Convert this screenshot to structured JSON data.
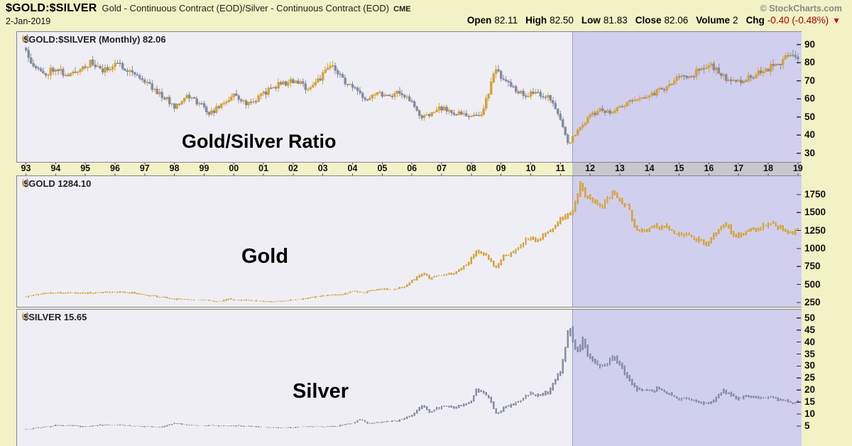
{
  "header": {
    "symbol": "$GOLD:$SILVER",
    "description": "Gold - Continuous Contract (EOD)/Silver - Continuous Contract (EOD)",
    "exchange": "CME",
    "copyright": "© StockCharts.com",
    "date": "2-Jan-2019",
    "down_triangle": "▼",
    "quote_fields": [
      {
        "label": "Open",
        "value": "82.11"
      },
      {
        "label": "High",
        "value": "82.50"
      },
      {
        "label": "Low",
        "value": "81.83"
      },
      {
        "label": "Close",
        "value": "82.06"
      },
      {
        "label": "Volume",
        "value": "2"
      },
      {
        "label": "Chg",
        "value": "-0.40 (-0.48%)",
        "negative": true
      }
    ]
  },
  "colors": {
    "background": "#f2f2c6",
    "plot_background": "#eeeef4",
    "shade_region": "#d0d0ee",
    "axis_shade": "#c7c7cd",
    "gold": "#d7a13b",
    "blue_gray": "#868ca4",
    "panel_border": "#84849c",
    "negative_red": "#aa0000"
  },
  "xaxis": {
    "x_range": [
      1992.7,
      2019.1
    ],
    "years": [
      "93",
      "94",
      "95",
      "96",
      "97",
      "98",
      "99",
      "00",
      "01",
      "02",
      "03",
      "04",
      "05",
      "06",
      "07",
      "08",
      "09",
      "10",
      "11",
      "12",
      "13",
      "14",
      "15",
      "16",
      "17",
      "18",
      "19"
    ]
  },
  "shade": {
    "start_year": 2011.4
  },
  "chart_data": [
    {
      "type": "bar",
      "style": "candle",
      "title": "$GOLD:$SILVER (Monthly) 82.06",
      "annotation": "Gold/Silver Ratio",
      "last_value": 82.06,
      "ylim": [
        25.2,
        97
      ],
      "yticks": [
        90,
        80,
        70,
        60,
        50,
        40,
        30
      ],
      "up_color": "#d7a13b",
      "down_color": "#868ca4",
      "volatility": 0.05,
      "seed": 11,
      "anchors": [
        [
          1993.0,
          88
        ],
        [
          1993.2,
          80
        ],
        [
          1993.6,
          73
        ],
        [
          1994.0,
          78
        ],
        [
          1994.4,
          72
        ],
        [
          1994.8,
          77
        ],
        [
          1995.2,
          80
        ],
        [
          1995.6,
          75
        ],
        [
          1996.0,
          80
        ],
        [
          1996.5,
          76
        ],
        [
          1997.0,
          70
        ],
        [
          1997.5,
          63
        ],
        [
          1998.0,
          56
        ],
        [
          1998.4,
          62
        ],
        [
          1998.8,
          58
        ],
        [
          1999.2,
          52
        ],
        [
          1999.6,
          57
        ],
        [
          2000.0,
          62
        ],
        [
          2000.5,
          57
        ],
        [
          2001.0,
          63
        ],
        [
          2001.5,
          68
        ],
        [
          2002.0,
          70
        ],
        [
          2002.5,
          66
        ],
        [
          2003.0,
          73
        ],
        [
          2003.3,
          79
        ],
        [
          2003.7,
          70
        ],
        [
          2004.0,
          66
        ],
        [
          2004.4,
          60
        ],
        [
          2004.8,
          64
        ],
        [
          2005.2,
          62
        ],
        [
          2005.6,
          64
        ],
        [
          2006.0,
          58
        ],
        [
          2006.3,
          49
        ],
        [
          2006.7,
          53
        ],
        [
          2007.0,
          55
        ],
        [
          2007.5,
          52
        ],
        [
          2008.0,
          50
        ],
        [
          2008.4,
          53
        ],
        [
          2008.8,
          77
        ],
        [
          2009.0,
          71
        ],
        [
          2009.4,
          66
        ],
        [
          2009.8,
          62
        ],
        [
          2010.2,
          64
        ],
        [
          2010.6,
          61
        ],
        [
          2011.0,
          49
        ],
        [
          2011.3,
          34
        ],
        [
          2011.45,
          40
        ],
        [
          2011.7,
          44
        ],
        [
          2012.0,
          51
        ],
        [
          2012.4,
          54
        ],
        [
          2012.8,
          53
        ],
        [
          2013.2,
          57
        ],
        [
          2013.6,
          60
        ],
        [
          2014.0,
          62
        ],
        [
          2014.5,
          66
        ],
        [
          2015.0,
          72
        ],
        [
          2015.5,
          74
        ],
        [
          2016.0,
          79
        ],
        [
          2016.4,
          74
        ],
        [
          2016.8,
          69
        ],
        [
          2017.2,
          71
        ],
        [
          2017.6,
          74
        ],
        [
          2018.0,
          77
        ],
        [
          2018.4,
          80
        ],
        [
          2018.6,
          84
        ],
        [
          2018.9,
          82
        ],
        [
          2019.0,
          82.06
        ]
      ]
    },
    {
      "type": "bar",
      "style": "bar",
      "title": "$GOLD 1284.10",
      "annotation": "Gold",
      "last_value": 1284.1,
      "ylim": [
        190,
        2006
      ],
      "yticks": [
        1750,
        1500,
        1250,
        1000,
        750,
        500,
        250
      ],
      "up_color": "#d7a13b",
      "down_color": "#d7a13b",
      "volatility": 0.038,
      "seed": 23,
      "anchors": [
        [
          1993.0,
          330
        ],
        [
          1993.5,
          375
        ],
        [
          1994.0,
          385
        ],
        [
          1994.5,
          385
        ],
        [
          1995.0,
          378
        ],
        [
          1995.5,
          385
        ],
        [
          1996.0,
          400
        ],
        [
          1996.5,
          385
        ],
        [
          1997.0,
          355
        ],
        [
          1997.5,
          325
        ],
        [
          1998.0,
          295
        ],
        [
          1998.5,
          290
        ],
        [
          1999.0,
          287
        ],
        [
          1999.55,
          256
        ],
        [
          1999.8,
          300
        ],
        [
          2000.0,
          285
        ],
        [
          2000.5,
          280
        ],
        [
          2001.0,
          265
        ],
        [
          2001.3,
          258
        ],
        [
          2001.8,
          278
        ],
        [
          2002.0,
          282
        ],
        [
          2002.5,
          315
        ],
        [
          2003.0,
          345
        ],
        [
          2003.5,
          355
        ],
        [
          2004.0,
          405
        ],
        [
          2004.4,
          390
        ],
        [
          2004.9,
          440
        ],
        [
          2005.3,
          428
        ],
        [
          2005.8,
          470
        ],
        [
          2006.0,
          550
        ],
        [
          2006.4,
          650
        ],
        [
          2006.6,
          585
        ],
        [
          2007.0,
          640
        ],
        [
          2007.5,
          665
        ],
        [
          2007.9,
          800
        ],
        [
          2008.2,
          975
        ],
        [
          2008.5,
          900
        ],
        [
          2008.85,
          725
        ],
        [
          2009.1,
          900
        ],
        [
          2009.4,
          930
        ],
        [
          2009.9,
          1150
        ],
        [
          2010.2,
          1110
        ],
        [
          2010.6,
          1230
        ],
        [
          2011.0,
          1390
        ],
        [
          2011.4,
          1520
        ],
        [
          2011.65,
          1880
        ],
        [
          2011.85,
          1720
        ],
        [
          2012.1,
          1680
        ],
        [
          2012.4,
          1590
        ],
        [
          2012.75,
          1770
        ],
        [
          2013.0,
          1660
        ],
        [
          2013.3,
          1560
        ],
        [
          2013.55,
          1230
        ],
        [
          2013.9,
          1250
        ],
        [
          2014.2,
          1320
        ],
        [
          2014.6,
          1290
        ],
        [
          2014.9,
          1180
        ],
        [
          2015.2,
          1200
        ],
        [
          2015.6,
          1120
        ],
        [
          2015.95,
          1065
        ],
        [
          2016.3,
          1240
        ],
        [
          2016.55,
          1360
        ],
        [
          2016.9,
          1150
        ],
        [
          2017.2,
          1230
        ],
        [
          2017.6,
          1270
        ],
        [
          2018.0,
          1330
        ],
        [
          2018.3,
          1320
        ],
        [
          2018.7,
          1185
        ],
        [
          2019.0,
          1284.1
        ]
      ]
    },
    {
      "type": "bar",
      "style": "bar",
      "title": "$SILVER 15.65",
      "annotation": "Silver",
      "last_value": 15.65,
      "ylim": [
        -3,
        53.5
      ],
      "yticks": [
        50,
        45,
        40,
        35,
        30,
        25,
        20,
        15,
        10,
        5
      ],
      "up_color": "#868ca4",
      "down_color": "#868ca4",
      "volatility": 0.055,
      "seed": 41,
      "anchors": [
        [
          1993.0,
          3.7
        ],
        [
          1993.5,
          4.4
        ],
        [
          1994.0,
          5.3
        ],
        [
          1994.5,
          5.3
        ],
        [
          1995.0,
          4.7
        ],
        [
          1995.5,
          5.4
        ],
        [
          1996.0,
          5.5
        ],
        [
          1996.5,
          5.1
        ],
        [
          1997.0,
          4.8
        ],
        [
          1997.5,
          4.4
        ],
        [
          1998.0,
          6.2
        ],
        [
          1998.4,
          5.4
        ],
        [
          1999.0,
          5.2
        ],
        [
          1999.5,
          5.2
        ],
        [
          2000.0,
          5.1
        ],
        [
          2000.5,
          5.0
        ],
        [
          2001.0,
          4.5
        ],
        [
          2001.6,
          4.3
        ],
        [
          2002.0,
          4.4
        ],
        [
          2002.5,
          4.8
        ],
        [
          2003.0,
          4.7
        ],
        [
          2003.5,
          5.0
        ],
        [
          2004.0,
          6.3
        ],
        [
          2004.25,
          7.9
        ],
        [
          2004.5,
          6.0
        ],
        [
          2005.0,
          6.8
        ],
        [
          2005.5,
          7.2
        ],
        [
          2006.0,
          9.4
        ],
        [
          2006.35,
          13.9
        ],
        [
          2006.6,
          10.8
        ],
        [
          2007.0,
          13.2
        ],
        [
          2007.5,
          13.0
        ],
        [
          2007.95,
          14.7
        ],
        [
          2008.2,
          20.2
        ],
        [
          2008.6,
          17.0
        ],
        [
          2008.85,
          9.6
        ],
        [
          2009.1,
          12.8
        ],
        [
          2009.5,
          14.5
        ],
        [
          2009.95,
          18.5
        ],
        [
          2010.2,
          17.5
        ],
        [
          2010.6,
          19.0
        ],
        [
          2011.0,
          28.5
        ],
        [
          2011.3,
          46.5
        ],
        [
          2011.55,
          35.0
        ],
        [
          2011.75,
          40.0
        ],
        [
          2012.0,
          32.5
        ],
        [
          2012.4,
          29.5
        ],
        [
          2012.8,
          33.5
        ],
        [
          2013.0,
          30.5
        ],
        [
          2013.4,
          23.0
        ],
        [
          2013.6,
          19.8
        ],
        [
          2014.0,
          20.0
        ],
        [
          2014.4,
          20.5
        ],
        [
          2014.9,
          16.5
        ],
        [
          2015.3,
          16.5
        ],
        [
          2015.7,
          15.0
        ],
        [
          2016.0,
          14.2
        ],
        [
          2016.5,
          19.5
        ],
        [
          2016.9,
          16.5
        ],
        [
          2017.3,
          17.5
        ],
        [
          2017.7,
          16.8
        ],
        [
          2018.0,
          17.2
        ],
        [
          2018.5,
          15.8
        ],
        [
          2018.85,
          14.2
        ],
        [
          2019.0,
          15.65
        ]
      ]
    }
  ]
}
